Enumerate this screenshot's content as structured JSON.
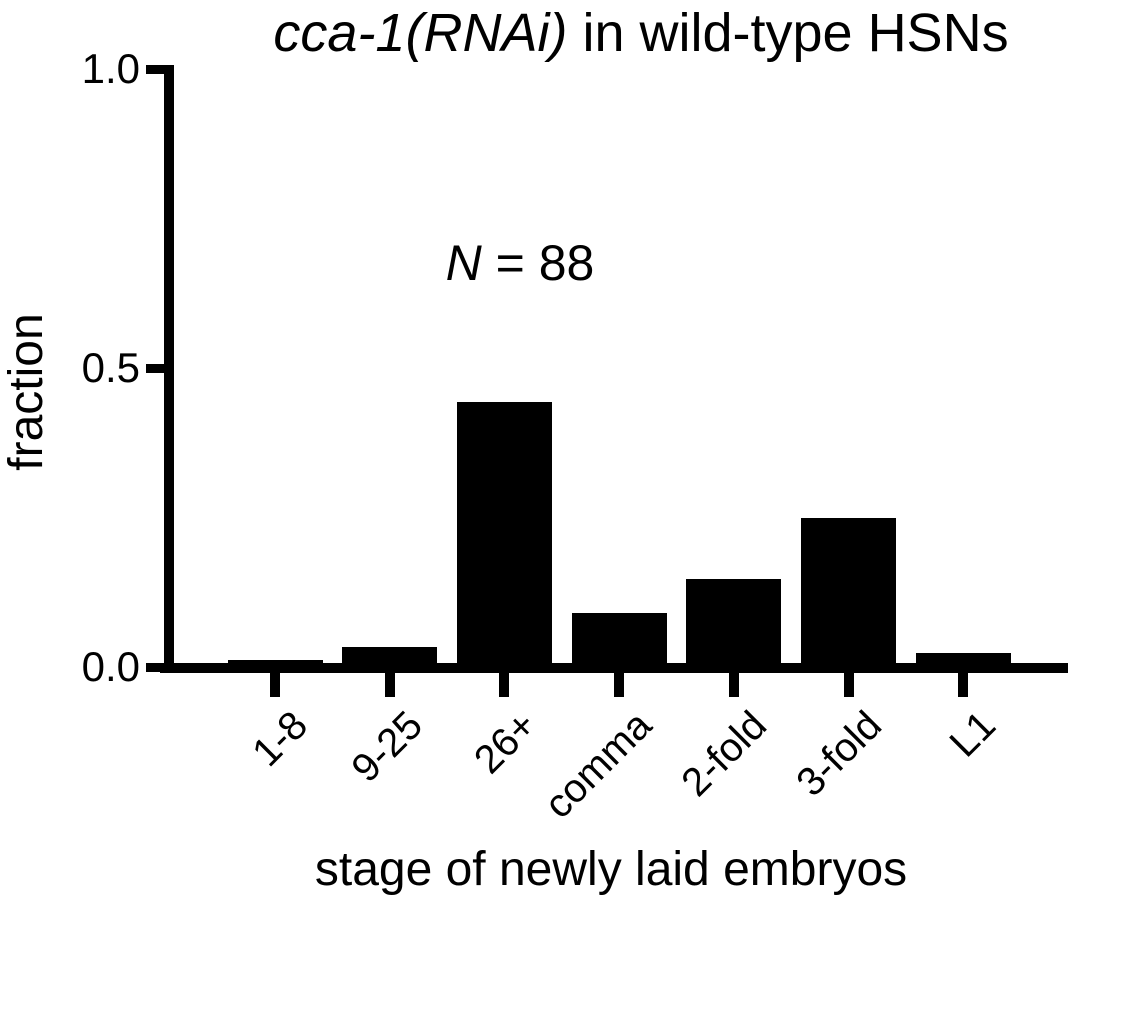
{
  "colors": {
    "foreground": "#000000",
    "background": "#ffffff",
    "bar_color": "#000000"
  },
  "chart_data": {
    "type": "bar",
    "title_italic": "cca-1(RNAi)",
    "title_rest": " in wild-type HSNs",
    "annotation_italic": "N",
    "annotation_rest": " = 88",
    "n_total": 88,
    "ylabel": "fraction",
    "xlabel": "stage of newly laid embryos",
    "categories": [
      "1-8",
      "9-25",
      "26+",
      "comma",
      "2-fold",
      "3-fold",
      "L1"
    ],
    "values": [
      0.011,
      0.034,
      0.443,
      0.091,
      0.148,
      0.25,
      0.023
    ],
    "counts_implied": [
      1,
      3,
      39,
      8,
      13,
      22,
      2
    ],
    "ytick_labels": [
      "0.0",
      "0.5",
      "1.0"
    ],
    "ytick_values": [
      0.0,
      0.5,
      1.0
    ],
    "ylim": [
      0,
      1
    ],
    "grid": false,
    "legend": null,
    "xtick_label_rotation_deg": 45
  }
}
